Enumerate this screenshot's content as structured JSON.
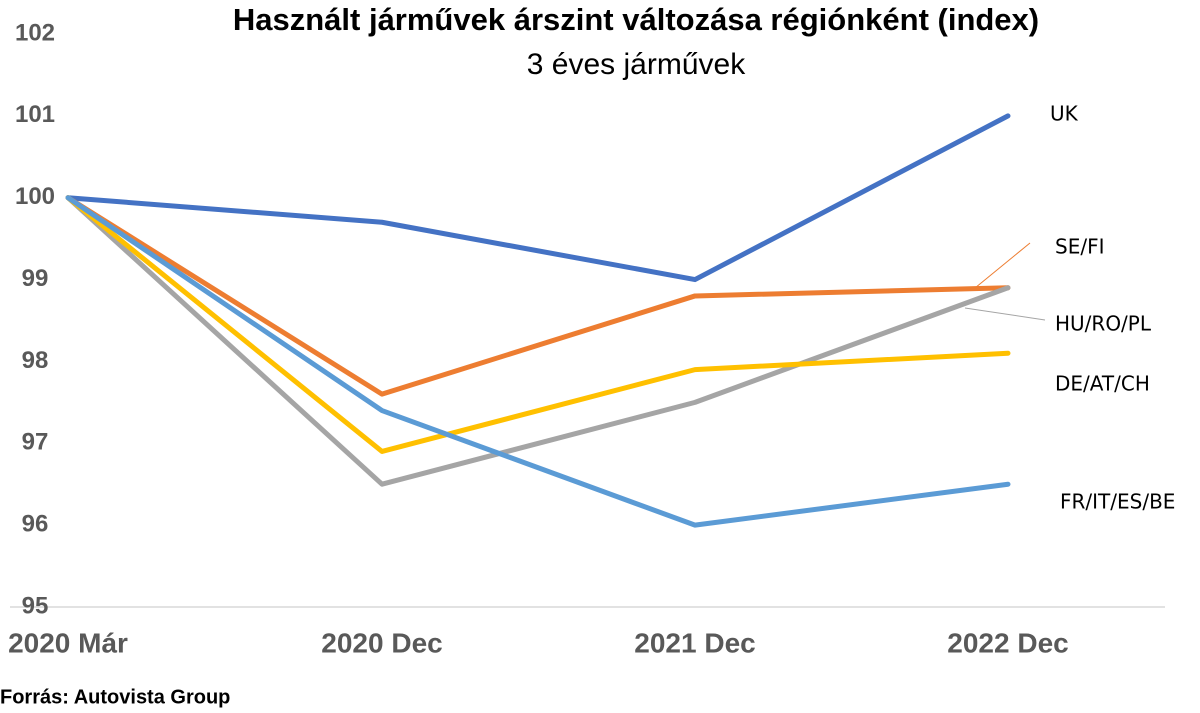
{
  "chart_data": {
    "type": "line",
    "title": "Használt járművek árszint változása régiónként (index)",
    "subtitle": "3 éves járművek",
    "source": "Forrás: Autovista Group",
    "categories": [
      "2020 Már",
      "2020 Dec",
      "2021 Dec",
      "2022 Dec"
    ],
    "series": [
      {
        "name": "UK",
        "color": "#4472c4",
        "values": [
          100,
          99.7,
          99.0,
          101.0
        ]
      },
      {
        "name": "SE/FI",
        "color": "#ed7d31",
        "values": [
          100,
          97.6,
          98.8,
          98.9
        ]
      },
      {
        "name": "HU/RO/PL",
        "color": "#a5a5a5",
        "values": [
          100,
          96.5,
          97.5,
          98.9
        ]
      },
      {
        "name": "DE/AT/CH",
        "color": "#ffc000",
        "values": [
          100,
          96.9,
          97.9,
          98.1
        ]
      },
      {
        "name": "FR/IT/ES/BE",
        "color": "#5b9bd5",
        "values": [
          100,
          97.4,
          96.0,
          96.5
        ]
      }
    ],
    "ylim": [
      95,
      102
    ],
    "yticks": [
      95,
      96,
      97,
      98,
      99,
      100,
      101,
      102
    ],
    "grid": false
  }
}
